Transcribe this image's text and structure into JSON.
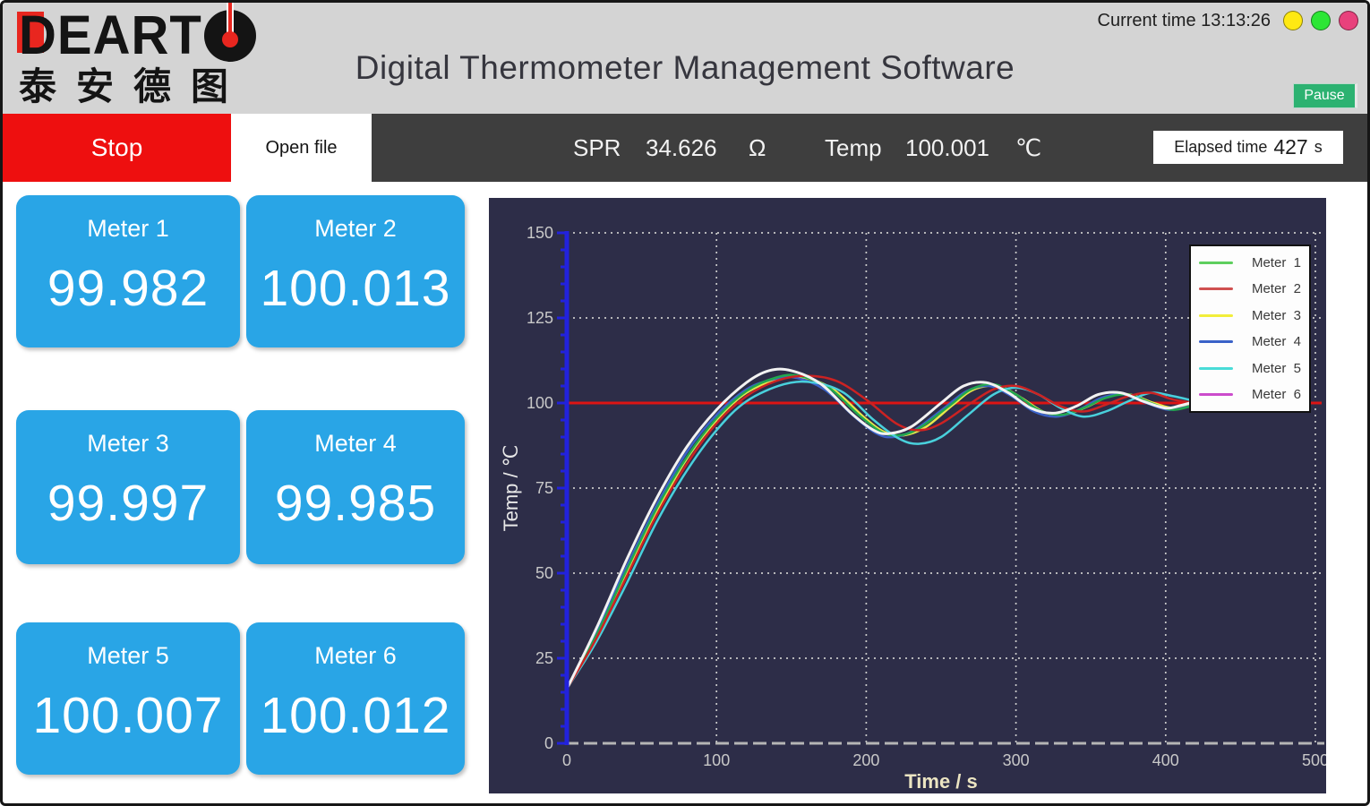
{
  "theme": {
    "header_gray": "#d4d4d4",
    "toolbar_dark": "#3e3e3e",
    "stop_red": "#ee0f0f",
    "pause_green": "#2cb271",
    "meter_blue": "#29a5e6",
    "chart_bg": "#2d2d48",
    "setpoint_red": "#dd1414"
  },
  "window": {
    "title": "Digital Thermometer Management Software",
    "current_time_label": "Current time",
    "current_time": "13:13:26",
    "pause_label": "Pause",
    "traffic_lights": [
      "#ffe913",
      "#2ce635",
      "#e8417c"
    ]
  },
  "logo": {
    "brand_prefix": "DEART",
    "chinese": "泰安德图"
  },
  "toolbar": {
    "stop_label": "Stop",
    "open_file_label": "Open file",
    "spr_label": "SPR",
    "spr_value": "34.626",
    "spr_unit": "Ω",
    "temp_label": "Temp",
    "temp_value": "100.001",
    "temp_unit": "℃",
    "elapsed_label": "Elapsed time",
    "elapsed_value": "427",
    "elapsed_unit": "s"
  },
  "meters": [
    {
      "label": "Meter 1",
      "value": "99.982"
    },
    {
      "label": "Meter 2",
      "value": "100.013"
    },
    {
      "label": "Meter 3",
      "value": "99.997"
    },
    {
      "label": "Meter 4",
      "value": "99.985"
    },
    {
      "label": "Meter 5",
      "value": "100.007"
    },
    {
      "label": "Meter 6",
      "value": "100.012"
    }
  ],
  "chart_data": {
    "type": "line",
    "xlabel": "Time / s",
    "ylabel": "Temp / ℃",
    "xlim": [
      0,
      500
    ],
    "ylim": [
      0,
      150
    ],
    "xticks": [
      0,
      100,
      200,
      300,
      400,
      500
    ],
    "yticks": [
      0,
      25,
      50,
      75,
      100,
      125,
      150
    ],
    "grid": "dotted",
    "legend_position": "top-right",
    "setpoint": {
      "y": 100,
      "color": "#dd1414"
    },
    "draw_order": [
      2,
      3,
      0,
      4,
      1,
      5
    ],
    "series": [
      {
        "name": "Meter  1",
        "legend_color": "#5ecf5e",
        "plot_color": "#22a84e",
        "points": [
          [
            0,
            16
          ],
          [
            20,
            32
          ],
          [
            40,
            51
          ],
          [
            60,
            69
          ],
          [
            80,
            84
          ],
          [
            100,
            95.5
          ],
          [
            120,
            103.5
          ],
          [
            140,
            107.5
          ],
          [
            155,
            108
          ],
          [
            175,
            104.5
          ],
          [
            195,
            96.5
          ],
          [
            210,
            91.5
          ],
          [
            222,
            90.5
          ],
          [
            235,
            92.5
          ],
          [
            255,
            99
          ],
          [
            270,
            104
          ],
          [
            285,
            105.5
          ],
          [
            300,
            102.5
          ],
          [
            315,
            98
          ],
          [
            330,
            96.5
          ],
          [
            345,
            98.5
          ],
          [
            360,
            101.5
          ],
          [
            375,
            102.5
          ],
          [
            390,
            100
          ],
          [
            405,
            98
          ],
          [
            420,
            99.5
          ]
        ]
      },
      {
        "name": "Meter  2",
        "legend_color": "#d05050",
        "plot_color": "#cc2222",
        "points": [
          [
            0,
            16
          ],
          [
            20,
            31
          ],
          [
            40,
            49
          ],
          [
            60,
            67
          ],
          [
            80,
            82
          ],
          [
            100,
            94
          ],
          [
            120,
            102
          ],
          [
            140,
            106.5
          ],
          [
            160,
            108
          ],
          [
            180,
            106.5
          ],
          [
            200,
            101
          ],
          [
            220,
            94
          ],
          [
            235,
            92
          ],
          [
            250,
            94
          ],
          [
            270,
            100
          ],
          [
            285,
            104
          ],
          [
            300,
            105
          ],
          [
            315,
            102.5
          ],
          [
            330,
            99
          ],
          [
            345,
            97.5
          ],
          [
            360,
            99.5
          ],
          [
            375,
            102
          ],
          [
            390,
            103
          ],
          [
            405,
            101
          ],
          [
            420,
            100
          ]
        ]
      },
      {
        "name": "Meter  3",
        "legend_color": "#f2ee3a",
        "plot_color": "#e8e84a",
        "points": [
          [
            0,
            16
          ],
          [
            20,
            32
          ],
          [
            40,
            50
          ],
          [
            60,
            68
          ],
          [
            80,
            83.5
          ],
          [
            100,
            95
          ],
          [
            120,
            103
          ],
          [
            142,
            107
          ],
          [
            158,
            107.5
          ],
          [
            178,
            104
          ],
          [
            198,
            96
          ],
          [
            212,
            91.5
          ],
          [
            225,
            90.5
          ],
          [
            240,
            93
          ],
          [
            258,
            99.5
          ],
          [
            272,
            104
          ],
          [
            288,
            105
          ],
          [
            302,
            102
          ],
          [
            318,
            97.5
          ],
          [
            332,
            96.5
          ],
          [
            348,
            99
          ],
          [
            362,
            102
          ],
          [
            376,
            102.5
          ],
          [
            392,
            100
          ],
          [
            406,
            98.5
          ],
          [
            420,
            100
          ]
        ]
      },
      {
        "name": "Meter  4",
        "legend_color": "#3a62c8",
        "plot_color": "#3a62c8",
        "points": [
          [
            0,
            16
          ],
          [
            20,
            33
          ],
          [
            40,
            52
          ],
          [
            60,
            70
          ],
          [
            80,
            85.5
          ],
          [
            100,
            96.5
          ],
          [
            120,
            104
          ],
          [
            138,
            107
          ],
          [
            152,
            107.5
          ],
          [
            172,
            104
          ],
          [
            192,
            96
          ],
          [
            207,
            91
          ],
          [
            218,
            90
          ],
          [
            232,
            92
          ],
          [
            252,
            98.5
          ],
          [
            267,
            103.5
          ],
          [
            282,
            105
          ],
          [
            297,
            102
          ],
          [
            312,
            97.5
          ],
          [
            327,
            96
          ],
          [
            342,
            98
          ],
          [
            357,
            101.5
          ],
          [
            372,
            102.5
          ],
          [
            387,
            100
          ],
          [
            402,
            98
          ],
          [
            415,
            99
          ],
          [
            420,
            99.5
          ]
        ]
      },
      {
        "name": "Meter  5",
        "legend_color": "#49dcd8",
        "plot_color": "#49d0dc",
        "points": [
          [
            0,
            16
          ],
          [
            20,
            30
          ],
          [
            40,
            47
          ],
          [
            60,
            65
          ],
          [
            80,
            80
          ],
          [
            100,
            92
          ],
          [
            120,
            100.5
          ],
          [
            145,
            105.5
          ],
          [
            165,
            106
          ],
          [
            185,
            103
          ],
          [
            205,
            95
          ],
          [
            222,
            89.5
          ],
          [
            235,
            88
          ],
          [
            250,
            90
          ],
          [
            268,
            96.5
          ],
          [
            285,
            102.5
          ],
          [
            300,
            104.5
          ],
          [
            315,
            102.5
          ],
          [
            330,
            98.5
          ],
          [
            345,
            96
          ],
          [
            360,
            97.5
          ],
          [
            375,
            100.5
          ],
          [
            390,
            103
          ],
          [
            405,
            102
          ],
          [
            420,
            100.5
          ]
        ]
      },
      {
        "name": "Meter  6",
        "legend_color": "#cc4ccc",
        "plot_color": "#f2f2f2",
        "points": [
          [
            0,
            16
          ],
          [
            20,
            34
          ],
          [
            40,
            54
          ],
          [
            60,
            72
          ],
          [
            80,
            87
          ],
          [
            100,
            98
          ],
          [
            120,
            106
          ],
          [
            135,
            109.5
          ],
          [
            150,
            109.5
          ],
          [
            170,
            105.5
          ],
          [
            190,
            97
          ],
          [
            205,
            92
          ],
          [
            215,
            91
          ],
          [
            230,
            93
          ],
          [
            250,
            100
          ],
          [
            265,
            105
          ],
          [
            280,
            106
          ],
          [
            295,
            103
          ],
          [
            310,
            98.5
          ],
          [
            325,
            97
          ],
          [
            340,
            99
          ],
          [
            355,
            102.5
          ],
          [
            370,
            103
          ],
          [
            385,
            100.5
          ],
          [
            400,
            98.5
          ],
          [
            410,
            99.3
          ],
          [
            420,
            100.5
          ]
        ]
      }
    ]
  }
}
